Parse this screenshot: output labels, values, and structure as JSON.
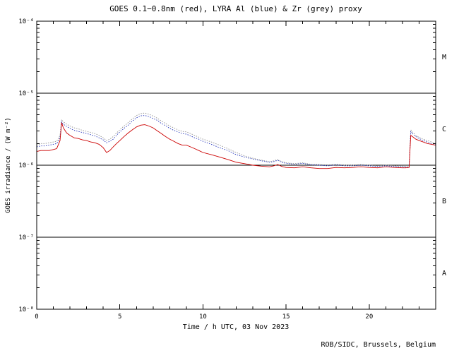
{
  "page": {
    "footer_credit": "ROB/SIDC, Brussels, Belgium"
  },
  "chart_data": {
    "type": "line",
    "title": "GOES 0.1−0.8nm (red), LYRA Al (blue) & Zr (grey) proxy",
    "xlabel": "Time / h UTC, 03 Nov 2023",
    "ylabel": "GOES irradiance / (W m⁻²)",
    "footer": "ROB/SIDC, Brussels, Belgium",
    "xlim": [
      0,
      24
    ],
    "ylog": true,
    "ylim_exponents": [
      -8,
      -4
    ],
    "grid": "decade-lines",
    "legend_position": "in-title",
    "x_major_ticks": [
      {
        "value": 0,
        "label": "0"
      },
      {
        "value": 5,
        "label": "5"
      },
      {
        "value": 10,
        "label": "10"
      },
      {
        "value": 15,
        "label": "15"
      },
      {
        "value": 20,
        "label": "20"
      }
    ],
    "x_minor_tick_step": 1,
    "y_decade_ticks": [
      {
        "exp": -4,
        "label": "10⁻⁴"
      },
      {
        "exp": -5,
        "label": "10⁻⁵"
      },
      {
        "exp": -6,
        "label": "10⁻⁶"
      },
      {
        "exp": -7,
        "label": "10⁻⁷"
      },
      {
        "exp": -8,
        "label": "10⁻⁸"
      }
    ],
    "hline_exponents": [
      -7,
      -6,
      -5
    ],
    "flare_classes": [
      {
        "label": "M",
        "mid_exp": -4.5
      },
      {
        "label": "C",
        "mid_exp": -5.5
      },
      {
        "label": "B",
        "mid_exp": -6.5
      },
      {
        "label": "A",
        "mid_exp": -7.5
      }
    ],
    "y_unit_scale": 1e-06,
    "x": [
      0,
      0.25,
      0.5,
      0.75,
      1.0,
      1.2,
      1.4,
      1.5,
      1.6,
      1.8,
      2.0,
      2.25,
      2.5,
      2.75,
      3.0,
      3.25,
      3.5,
      3.75,
      4.0,
      4.2,
      4.4,
      4.6,
      4.8,
      5.0,
      5.25,
      5.5,
      5.75,
      6.0,
      6.25,
      6.5,
      6.75,
      7.0,
      7.25,
      7.5,
      7.75,
      8.0,
      8.25,
      8.5,
      8.75,
      9.0,
      9.25,
      9.5,
      9.75,
      10.0,
      10.5,
      11.0,
      11.5,
      12.0,
      12.5,
      13.0,
      13.5,
      14.0,
      14.25,
      14.5,
      14.75,
      15.0,
      15.5,
      16.0,
      16.5,
      17.0,
      17.5,
      18.0,
      18.5,
      19.0,
      19.5,
      20.0,
      20.5,
      21.0,
      21.5,
      22.0,
      22.2,
      22.4,
      22.5,
      22.6,
      22.8,
      23.0,
      23.25,
      23.5,
      23.75,
      24.0
    ],
    "series": [
      {
        "name": "LYRA Zr proxy",
        "color": "#909090",
        "style": "dotted",
        "values": [
          1.9,
          2.0,
          2.0,
          2.05,
          2.1,
          2.15,
          2.6,
          4.3,
          4.0,
          3.7,
          3.5,
          3.3,
          3.2,
          3.05,
          2.95,
          2.85,
          2.75,
          2.6,
          2.4,
          2.2,
          2.3,
          2.5,
          2.8,
          3.1,
          3.5,
          3.9,
          4.4,
          4.9,
          5.2,
          5.3,
          5.1,
          4.8,
          4.5,
          4.1,
          3.8,
          3.5,
          3.3,
          3.1,
          2.95,
          2.9,
          2.75,
          2.6,
          2.45,
          2.3,
          2.1,
          1.9,
          1.7,
          1.5,
          1.35,
          1.25,
          1.18,
          1.12,
          1.15,
          1.2,
          1.12,
          1.08,
          1.05,
          1.08,
          1.03,
          1.02,
          1.0,
          1.03,
          1.0,
          1.0,
          1.02,
          1.0,
          0.98,
          1.0,
          0.98,
          0.97,
          0.96,
          0.95,
          3.1,
          2.9,
          2.6,
          2.45,
          2.3,
          2.2,
          2.1,
          2.0
        ]
      },
      {
        "name": "LYRA Al",
        "color": "#2233bb",
        "style": "dotted",
        "values": [
          1.8,
          1.85,
          1.85,
          1.9,
          1.95,
          2.0,
          2.4,
          4.0,
          3.7,
          3.45,
          3.25,
          3.05,
          2.95,
          2.85,
          2.75,
          2.65,
          2.55,
          2.4,
          2.25,
          2.05,
          2.15,
          2.3,
          2.6,
          2.9,
          3.25,
          3.6,
          4.1,
          4.55,
          4.85,
          4.9,
          4.75,
          4.45,
          4.2,
          3.8,
          3.55,
          3.25,
          3.05,
          2.9,
          2.75,
          2.7,
          2.55,
          2.4,
          2.3,
          2.15,
          1.95,
          1.75,
          1.6,
          1.4,
          1.3,
          1.22,
          1.15,
          1.1,
          1.12,
          1.17,
          1.1,
          1.06,
          1.03,
          1.06,
          1.01,
          1.0,
          0.98,
          1.01,
          0.98,
          0.98,
          1.0,
          0.98,
          0.96,
          0.98,
          0.96,
          0.95,
          0.94,
          0.93,
          2.9,
          2.75,
          2.5,
          2.35,
          2.2,
          2.1,
          2.0,
          1.95
        ]
      },
      {
        "name": "GOES 0.1-0.8nm",
        "color": "#cc0000",
        "style": "solid",
        "values": [
          1.55,
          1.6,
          1.6,
          1.6,
          1.65,
          1.7,
          2.2,
          3.9,
          3.3,
          2.8,
          2.6,
          2.4,
          2.35,
          2.25,
          2.2,
          2.1,
          2.05,
          1.95,
          1.75,
          1.5,
          1.6,
          1.8,
          2.0,
          2.2,
          2.5,
          2.8,
          3.1,
          3.4,
          3.6,
          3.65,
          3.5,
          3.3,
          3.0,
          2.75,
          2.5,
          2.3,
          2.15,
          2.0,
          1.9,
          1.9,
          1.8,
          1.7,
          1.6,
          1.5,
          1.4,
          1.3,
          1.2,
          1.1,
          1.05,
          1.0,
          0.97,
          0.95,
          0.98,
          1.02,
          0.96,
          0.93,
          0.92,
          0.95,
          0.92,
          0.9,
          0.9,
          0.93,
          0.92,
          0.93,
          0.95,
          0.93,
          0.92,
          0.95,
          0.93,
          0.92,
          0.92,
          0.93,
          2.6,
          2.5,
          2.3,
          2.2,
          2.1,
          2.0,
          1.95,
          1.9
        ]
      }
    ]
  }
}
